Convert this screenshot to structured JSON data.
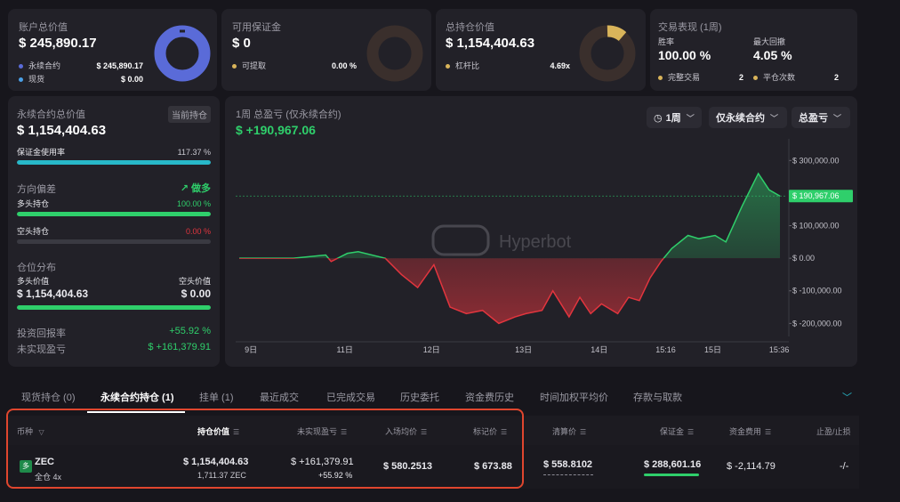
{
  "account": {
    "title": "账户总价值",
    "value": "$ 245,890.17",
    "perp_label": "永续合约",
    "perp_value": "$ 245,890.17",
    "spot_label": "现货",
    "spot_value": "$ 0.00",
    "perp_fraction": 1.0
  },
  "margin": {
    "title": "可用保证金",
    "value": "$ 0",
    "withdraw_label": "可提取",
    "withdraw_value": "0.00 %"
  },
  "positions_value": {
    "title": "总持仓价值",
    "value": "$ 1,154,404.63",
    "leverage_label": "杠杆比",
    "leverage_value": "4.69x"
  },
  "performance": {
    "title": "交易表现 (1周)",
    "winrate_label": "胜率",
    "winrate_value": "100.00 %",
    "drawdown_label": "最大回撤",
    "drawdown_value": "4.05 %",
    "completed_label": "完整交易",
    "completed_value": "2",
    "close_label": "平仓次数",
    "close_value": "2"
  },
  "perp_panel": {
    "title": "永续合约总价值",
    "badge": "当前持仓",
    "value": "$ 1,154,404.63",
    "margin_usage_label": "保证金使用率",
    "margin_usage_value": "117.37 %",
    "margin_usage_fraction": 1.0,
    "bias_label": "方向偏差",
    "bias_value": "做多",
    "long_label": "多头持仓",
    "long_value": "100.00 %",
    "long_fraction": 1.0,
    "short_label": "空头持仓",
    "short_value": "0.00 %",
    "short_fraction": 0.0,
    "dist_label": "仓位分布",
    "long_val_label": "多头价值",
    "long_val": "$ 1,154,404.63",
    "short_val_label": "空头价值",
    "short_val": "$ 0.00",
    "dist_fraction": 1.0,
    "roe_label": "投资回报率",
    "roe_value": "+55.92 %",
    "upnl_label": "未实现盈亏",
    "upnl_value": "$ +161,379.91"
  },
  "pnl_chart": {
    "title": "1周 总盈亏 (仅永续合约)",
    "value": "$ +190,967.06",
    "btn_period": "1周",
    "btn_scope": "仅永续合约",
    "btn_metric": "总盈亏",
    "watermark": "Hyperbot",
    "last_label": "$ 190,967.06"
  },
  "chart_data": {
    "type": "area",
    "title": "1周 总盈亏 (仅永续合约)",
    "x_ticks": [
      "9日",
      "11日",
      "12日",
      "13日",
      "14日",
      "15:16",
      "15日",
      "15:36"
    ],
    "y_ticks": [
      "$ 300,000.00",
      "$ 200,000.00",
      "$ 100,000.00",
      "$ 0.00",
      "$ -100,000.00",
      "$ -200,000.00"
    ],
    "y_tick_values": [
      300000,
      200000,
      100000,
      0,
      -100000,
      -200000
    ],
    "ylim": [
      -240000,
      350000
    ],
    "last_value": 190967.06,
    "series": [
      {
        "x": [
          0.0,
          0.06,
          0.1,
          0.16,
          0.17,
          0.2,
          0.22,
          0.27,
          0.3,
          0.33,
          0.36,
          0.39,
          0.42,
          0.45,
          0.48,
          0.51,
          0.53,
          0.56,
          0.58,
          0.61,
          0.63,
          0.65,
          0.67,
          0.7,
          0.72,
          0.74,
          0.76,
          0.78,
          0.8,
          0.83,
          0.85,
          0.88,
          0.9,
          0.93,
          0.96,
          0.98,
          1.0
        ],
        "values": [
          0,
          0,
          0,
          10000,
          -10000,
          15000,
          20000,
          0,
          -50000,
          -90000,
          -20000,
          -150000,
          -170000,
          -160000,
          -200000,
          -180000,
          -170000,
          -160000,
          -100000,
          -180000,
          -120000,
          -170000,
          -140000,
          -170000,
          -120000,
          -130000,
          -60000,
          -10000,
          30000,
          70000,
          60000,
          70000,
          50000,
          160000,
          260000,
          210000,
          190967
        ]
      }
    ]
  },
  "tabs": [
    {
      "label": "现货持仓 (0)"
    },
    {
      "label": "永续合约持仓 (1)"
    },
    {
      "label": "挂单 (1)"
    },
    {
      "label": "最近成交"
    },
    {
      "label": "已完成交易"
    },
    {
      "label": "历史委托"
    },
    {
      "label": "资金费历史"
    },
    {
      "label": "时间加权平均价"
    },
    {
      "label": "存款与取款"
    }
  ],
  "table": {
    "headers": [
      "币种",
      "持仓价值",
      "未实现盈亏",
      "入场均价",
      "标记价",
      "清算价",
      "保证金",
      "资金费用",
      "止盈/止损"
    ],
    "row": {
      "icon_text": "多",
      "coin": "ZEC",
      "coin_sub": "全仓 4x",
      "position_value": "$ 1,154,404.63",
      "position_size": "1,711.37 ZEC",
      "upnl": "$ +161,379.91",
      "upnl_pct": "+55.92 %",
      "entry": "$ 580.2513",
      "mark": "$ 673.88",
      "liq": "$ 558.8102",
      "margin": "$ 288,601.16",
      "funding": "$ -2,114.79",
      "tpsl": "-/-"
    }
  },
  "colors": {
    "green": "#2fcf6b",
    "red": "#e2353e",
    "donut_blue": "#5a6bd8",
    "donut_gold": "#d9b45a",
    "cyan": "#28b8c9",
    "highlight": "#e0462e"
  }
}
